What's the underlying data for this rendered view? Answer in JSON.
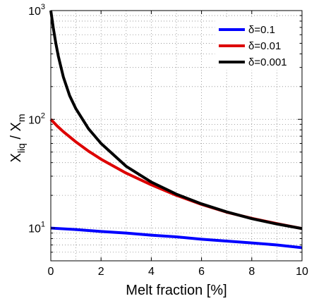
{
  "chart_data": {
    "type": "line",
    "xlabel": "Melt fraction [%]",
    "ylabel": {
      "base": "X",
      "sub1": "liq",
      "sep": " / X",
      "sub2": "m"
    },
    "xlim": [
      0,
      10
    ],
    "ylim": [
      5,
      1000
    ],
    "yscale": "log",
    "grid": true,
    "legend_position": "top-right",
    "x_ticks": [
      "0",
      "2",
      "4",
      "6",
      "8",
      "10"
    ],
    "y_ticks": [
      {
        "value": 10,
        "base": "10",
        "exp": "1"
      },
      {
        "value": 100,
        "base": "10",
        "exp": "2"
      },
      {
        "value": 1000,
        "base": "10",
        "exp": "3"
      }
    ],
    "series": [
      {
        "name": "δ=0.1",
        "color": "#0000ff",
        "x": [
          0,
          1,
          2,
          3,
          4,
          5,
          6,
          7,
          8,
          9,
          10
        ],
        "y": [
          10,
          9.7,
          9.3,
          9.0,
          8.6,
          8.3,
          7.9,
          7.6,
          7.3,
          7.0,
          6.6
        ]
      },
      {
        "name": "δ=0.01",
        "color": "#dd0000",
        "x": [
          0,
          0.25,
          0.5,
          1,
          1.5,
          2,
          3,
          4,
          5,
          6,
          7,
          8,
          9,
          10
        ],
        "y": [
          100,
          87,
          77,
          62,
          51,
          43,
          32,
          25,
          20,
          16.5,
          14,
          12.3,
          11,
          9.9
        ]
      },
      {
        "name": "δ=0.001",
        "color": "#000000",
        "x": [
          0,
          0.1,
          0.2,
          0.3,
          0.5,
          0.75,
          1,
          1.5,
          2,
          3,
          4,
          5,
          6,
          7,
          8,
          9,
          10
        ],
        "y": [
          1000,
          690,
          500,
          380,
          245,
          165,
          125,
          82,
          60,
          37,
          26.5,
          20.5,
          16.7,
          14.1,
          12.2,
          10.9,
          9.9
        ]
      }
    ]
  }
}
